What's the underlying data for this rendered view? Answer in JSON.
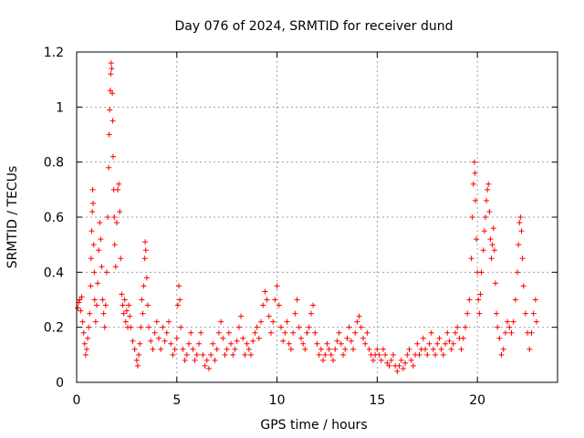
{
  "chart_data": {
    "type": "scatter",
    "title": "Day 076 of 2024, SRMTID for receiver dund",
    "xlabel": "GPS time / hours",
    "ylabel": "SRMTID / TECUs",
    "xlim": [
      0,
      24
    ],
    "ylim": [
      0,
      1.2
    ],
    "x_ticks": [
      0,
      5,
      10,
      15,
      20
    ],
    "x_tick_labels": [
      "0",
      "5",
      "10",
      "15",
      "20"
    ],
    "y_ticks": [
      0,
      0.2,
      0.4,
      0.6,
      0.8,
      1,
      1.2
    ],
    "y_tick_labels": [
      "0",
      "0.2",
      "0.4",
      "0.6",
      "0.8",
      "1",
      "1.2"
    ],
    "grid": true,
    "marker": "+",
    "series": [
      {
        "name": "SRMTID",
        "color": "#ff0000",
        "points": [
          [
            0.05,
            0.27
          ],
          [
            0.1,
            0.29
          ],
          [
            0.15,
            0.3
          ],
          [
            0.2,
            0.26
          ],
          [
            0.25,
            0.31
          ],
          [
            0.3,
            0.22
          ],
          [
            0.35,
            0.18
          ],
          [
            0.4,
            0.14
          ],
          [
            0.45,
            0.1
          ],
          [
            0.5,
            0.12
          ],
          [
            0.55,
            0.16
          ],
          [
            0.6,
            0.2
          ],
          [
            0.65,
            0.25
          ],
          [
            0.7,
            0.35
          ],
          [
            0.72,
            0.45
          ],
          [
            0.75,
            0.55
          ],
          [
            0.78,
            0.62
          ],
          [
            0.8,
            0.7
          ],
          [
            0.82,
            0.65
          ],
          [
            0.85,
            0.5
          ],
          [
            0.88,
            0.4
          ],
          [
            0.9,
            0.3
          ],
          [
            0.95,
            0.22
          ],
          [
            1.0,
            0.28
          ],
          [
            1.05,
            0.36
          ],
          [
            1.1,
            0.48
          ],
          [
            1.15,
            0.58
          ],
          [
            1.2,
            0.52
          ],
          [
            1.25,
            0.42
          ],
          [
            1.3,
            0.3
          ],
          [
            1.35,
            0.25
          ],
          [
            1.4,
            0.2
          ],
          [
            1.45,
            0.28
          ],
          [
            1.5,
            0.4
          ],
          [
            1.55,
            0.6
          ],
          [
            1.6,
            0.78
          ],
          [
            1.62,
            0.9
          ],
          [
            1.65,
            0.99
          ],
          [
            1.68,
            1.06
          ],
          [
            1.7,
            1.12
          ],
          [
            1.72,
            1.16
          ],
          [
            1.75,
            1.14
          ],
          [
            1.78,
            1.05
          ],
          [
            1.8,
            0.95
          ],
          [
            1.82,
            0.82
          ],
          [
            1.85,
            0.7
          ],
          [
            1.88,
            0.6
          ],
          [
            1.9,
            0.5
          ],
          [
            1.95,
            0.42
          ],
          [
            2.0,
            0.58
          ],
          [
            2.05,
            0.7
          ],
          [
            2.1,
            0.72
          ],
          [
            2.15,
            0.62
          ],
          [
            2.2,
            0.45
          ],
          [
            2.25,
            0.32
          ],
          [
            2.3,
            0.28
          ],
          [
            2.35,
            0.25
          ],
          [
            2.4,
            0.3
          ],
          [
            2.45,
            0.22
          ],
          [
            2.5,
            0.26
          ],
          [
            2.55,
            0.2
          ],
          [
            2.6,
            0.28
          ],
          [
            2.65,
            0.24
          ],
          [
            2.7,
            0.2
          ],
          [
            2.8,
            0.15
          ],
          [
            2.9,
            0.12
          ],
          [
            3.0,
            0.08
          ],
          [
            3.05,
            0.06
          ],
          [
            3.1,
            0.1
          ],
          [
            3.15,
            0.14
          ],
          [
            3.2,
            0.2
          ],
          [
            3.25,
            0.3
          ],
          [
            3.3,
            0.25
          ],
          [
            3.35,
            0.35
          ],
          [
            3.4,
            0.45
          ],
          [
            3.42,
            0.51
          ],
          [
            3.45,
            0.48
          ],
          [
            3.5,
            0.38
          ],
          [
            3.55,
            0.28
          ],
          [
            3.6,
            0.2
          ],
          [
            3.7,
            0.15
          ],
          [
            3.8,
            0.12
          ],
          [
            3.9,
            0.18
          ],
          [
            4.0,
            0.22
          ],
          [
            4.1,
            0.16
          ],
          [
            4.2,
            0.12
          ],
          [
            4.3,
            0.2
          ],
          [
            4.4,
            0.15
          ],
          [
            4.5,
            0.18
          ],
          [
            4.6,
            0.22
          ],
          [
            4.7,
            0.14
          ],
          [
            4.8,
            0.1
          ],
          [
            4.9,
            0.12
          ],
          [
            5.0,
            0.16
          ],
          [
            5.05,
            0.28
          ],
          [
            5.1,
            0.35
          ],
          [
            5.15,
            0.3
          ],
          [
            5.2,
            0.2
          ],
          [
            5.3,
            0.12
          ],
          [
            5.4,
            0.08
          ],
          [
            5.5,
            0.1
          ],
          [
            5.6,
            0.14
          ],
          [
            5.7,
            0.18
          ],
          [
            5.8,
            0.12
          ],
          [
            5.9,
            0.08
          ],
          [
            6.0,
            0.1
          ],
          [
            6.1,
            0.14
          ],
          [
            6.2,
            0.18
          ],
          [
            6.3,
            0.1
          ],
          [
            6.4,
            0.06
          ],
          [
            6.5,
            0.08
          ],
          [
            6.6,
            0.05
          ],
          [
            6.7,
            0.1
          ],
          [
            6.8,
            0.14
          ],
          [
            6.9,
            0.08
          ],
          [
            7.0,
            0.12
          ],
          [
            7.1,
            0.18
          ],
          [
            7.2,
            0.22
          ],
          [
            7.3,
            0.16
          ],
          [
            7.4,
            0.1
          ],
          [
            7.5,
            0.12
          ],
          [
            7.6,
            0.18
          ],
          [
            7.7,
            0.14
          ],
          [
            7.8,
            0.1
          ],
          [
            7.9,
            0.12
          ],
          [
            8.0,
            0.15
          ],
          [
            8.1,
            0.2
          ],
          [
            8.2,
            0.24
          ],
          [
            8.3,
            0.16
          ],
          [
            8.4,
            0.1
          ],
          [
            8.5,
            0.14
          ],
          [
            8.6,
            0.12
          ],
          [
            8.7,
            0.1
          ],
          [
            8.8,
            0.15
          ],
          [
            8.9,
            0.18
          ],
          [
            9.0,
            0.2
          ],
          [
            9.1,
            0.16
          ],
          [
            9.2,
            0.22
          ],
          [
            9.3,
            0.28
          ],
          [
            9.4,
            0.33
          ],
          [
            9.5,
            0.3
          ],
          [
            9.6,
            0.24
          ],
          [
            9.7,
            0.18
          ],
          [
            9.8,
            0.22
          ],
          [
            9.9,
            0.3
          ],
          [
            10.0,
            0.35
          ],
          [
            10.1,
            0.28
          ],
          [
            10.2,
            0.2
          ],
          [
            10.3,
            0.15
          ],
          [
            10.4,
            0.18
          ],
          [
            10.5,
            0.22
          ],
          [
            10.6,
            0.14
          ],
          [
            10.7,
            0.12
          ],
          [
            10.8,
            0.18
          ],
          [
            10.9,
            0.25
          ],
          [
            11.0,
            0.3
          ],
          [
            11.1,
            0.2
          ],
          [
            11.2,
            0.16
          ],
          [
            11.3,
            0.14
          ],
          [
            11.4,
            0.12
          ],
          [
            11.5,
            0.18
          ],
          [
            11.6,
            0.2
          ],
          [
            11.7,
            0.25
          ],
          [
            11.8,
            0.28
          ],
          [
            11.9,
            0.18
          ],
          [
            12.0,
            0.14
          ],
          [
            12.1,
            0.1
          ],
          [
            12.2,
            0.12
          ],
          [
            12.3,
            0.08
          ],
          [
            12.4,
            0.1
          ],
          [
            12.5,
            0.14
          ],
          [
            12.6,
            0.12
          ],
          [
            12.7,
            0.1
          ],
          [
            12.8,
            0.08
          ],
          [
            12.9,
            0.12
          ],
          [
            13.0,
            0.15
          ],
          [
            13.1,
            0.18
          ],
          [
            13.2,
            0.14
          ],
          [
            13.3,
            0.1
          ],
          [
            13.4,
            0.12
          ],
          [
            13.5,
            0.16
          ],
          [
            13.6,
            0.2
          ],
          [
            13.7,
            0.15
          ],
          [
            13.8,
            0.12
          ],
          [
            13.9,
            0.18
          ],
          [
            14.0,
            0.22
          ],
          [
            14.1,
            0.24
          ],
          [
            14.2,
            0.2
          ],
          [
            14.3,
            0.16
          ],
          [
            14.4,
            0.14
          ],
          [
            14.5,
            0.18
          ],
          [
            14.6,
            0.12
          ],
          [
            14.7,
            0.1
          ],
          [
            14.8,
            0.08
          ],
          [
            14.9,
            0.1
          ],
          [
            15.0,
            0.12
          ],
          [
            15.1,
            0.1
          ],
          [
            15.2,
            0.08
          ],
          [
            15.3,
            0.12
          ],
          [
            15.4,
            0.1
          ],
          [
            15.5,
            0.07
          ],
          [
            15.6,
            0.06
          ],
          [
            15.7,
            0.08
          ],
          [
            15.8,
            0.1
          ],
          [
            15.9,
            0.06
          ],
          [
            16.0,
            0.04
          ],
          [
            16.1,
            0.06
          ],
          [
            16.2,
            0.08
          ],
          [
            16.3,
            0.05
          ],
          [
            16.4,
            0.07
          ],
          [
            16.5,
            0.1
          ],
          [
            16.6,
            0.12
          ],
          [
            16.7,
            0.08
          ],
          [
            16.8,
            0.06
          ],
          [
            16.9,
            0.1
          ],
          [
            17.0,
            0.14
          ],
          [
            17.1,
            0.1
          ],
          [
            17.2,
            0.12
          ],
          [
            17.3,
            0.16
          ],
          [
            17.4,
            0.12
          ],
          [
            17.5,
            0.1
          ],
          [
            17.6,
            0.14
          ],
          [
            17.7,
            0.18
          ],
          [
            17.8,
            0.12
          ],
          [
            17.9,
            0.1
          ],
          [
            18.0,
            0.14
          ],
          [
            18.1,
            0.16
          ],
          [
            18.2,
            0.12
          ],
          [
            18.3,
            0.1
          ],
          [
            18.4,
            0.14
          ],
          [
            18.5,
            0.18
          ],
          [
            18.6,
            0.15
          ],
          [
            18.7,
            0.12
          ],
          [
            18.8,
            0.14
          ],
          [
            18.9,
            0.18
          ],
          [
            19.0,
            0.2
          ],
          [
            19.1,
            0.16
          ],
          [
            19.2,
            0.12
          ],
          [
            19.3,
            0.16
          ],
          [
            19.4,
            0.2
          ],
          [
            19.5,
            0.25
          ],
          [
            19.6,
            0.3
          ],
          [
            19.7,
            0.45
          ],
          [
            19.75,
            0.6
          ],
          [
            19.8,
            0.72
          ],
          [
            19.85,
            0.8
          ],
          [
            19.88,
            0.76
          ],
          [
            19.9,
            0.66
          ],
          [
            19.95,
            0.52
          ],
          [
            20.0,
            0.4
          ],
          [
            20.05,
            0.3
          ],
          [
            20.1,
            0.25
          ],
          [
            20.15,
            0.32
          ],
          [
            20.2,
            0.4
          ],
          [
            20.3,
            0.48
          ],
          [
            20.35,
            0.55
          ],
          [
            20.4,
            0.6
          ],
          [
            20.45,
            0.66
          ],
          [
            20.5,
            0.7
          ],
          [
            20.55,
            0.72
          ],
          [
            20.6,
            0.62
          ],
          [
            20.65,
            0.52
          ],
          [
            20.7,
            0.45
          ],
          [
            20.75,
            0.5
          ],
          [
            20.8,
            0.56
          ],
          [
            20.85,
            0.48
          ],
          [
            20.9,
            0.36
          ],
          [
            20.95,
            0.25
          ],
          [
            21.0,
            0.2
          ],
          [
            21.1,
            0.16
          ],
          [
            21.2,
            0.1
          ],
          [
            21.3,
            0.12
          ],
          [
            21.4,
            0.18
          ],
          [
            21.5,
            0.22
          ],
          [
            21.6,
            0.2
          ],
          [
            21.7,
            0.18
          ],
          [
            21.8,
            0.22
          ],
          [
            21.9,
            0.3
          ],
          [
            22.0,
            0.4
          ],
          [
            22.05,
            0.5
          ],
          [
            22.1,
            0.58
          ],
          [
            22.15,
            0.6
          ],
          [
            22.2,
            0.55
          ],
          [
            22.25,
            0.45
          ],
          [
            22.3,
            0.35
          ],
          [
            22.4,
            0.25
          ],
          [
            22.5,
            0.18
          ],
          [
            22.6,
            0.12
          ],
          [
            22.7,
            0.18
          ],
          [
            22.8,
            0.25
          ],
          [
            22.9,
            0.3
          ],
          [
            22.95,
            0.22
          ]
        ]
      }
    ]
  }
}
